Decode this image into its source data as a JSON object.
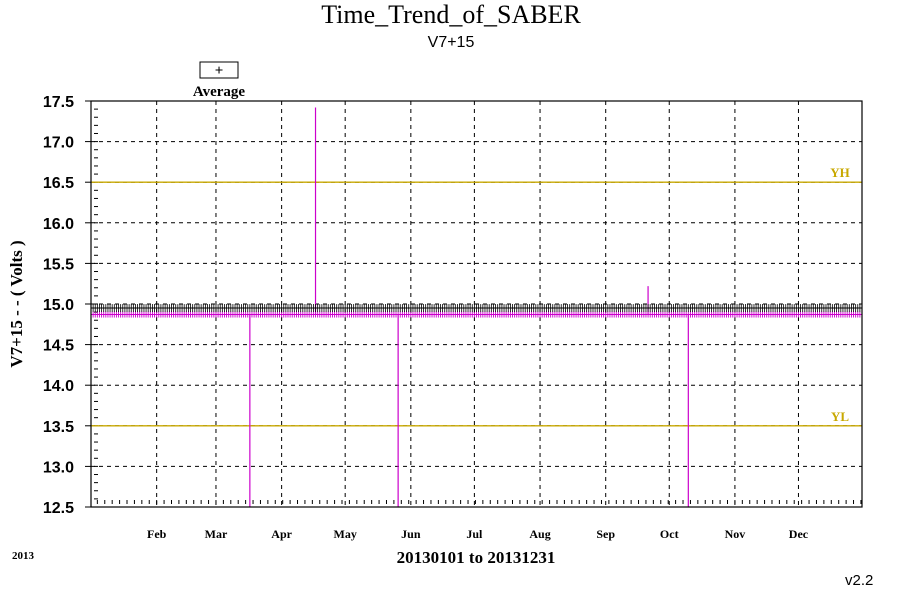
{
  "chart_data": {
    "type": "line",
    "title": "Time_Trend_of_SABER",
    "subtitle": "V7+15",
    "xlabel": "20130101 to 20131231",
    "ylabel": "V7+15  - - ( Volts )",
    "year_label": "2013",
    "version": "v2.2",
    "legend": {
      "symbol": "+",
      "label": "Average",
      "placement": "top-left"
    },
    "ylim": [
      12.5,
      17.5
    ],
    "yticks": [
      "12.5",
      "13.0",
      "13.5",
      "14.0",
      "14.5",
      "15.0",
      "15.5",
      "16.0",
      "16.5",
      "17.0",
      "17.5"
    ],
    "xlim_day": [
      1,
      365
    ],
    "months": [
      {
        "label": "Feb",
        "day": 32
      },
      {
        "label": "Mar",
        "day": 60
      },
      {
        "label": "Apr",
        "day": 91
      },
      {
        "label": "May",
        "day": 121
      },
      {
        "label": "Jun",
        "day": 152
      },
      {
        "label": "Jul",
        "day": 182
      },
      {
        "label": "Aug",
        "day": 213
      },
      {
        "label": "Sep",
        "day": 244
      },
      {
        "label": "Oct",
        "day": 274
      },
      {
        "label": "Nov",
        "day": 305
      },
      {
        "label": "Dec",
        "day": 335
      }
    ],
    "limits": [
      {
        "label": "YH",
        "value": 16.5,
        "color": "#c8a800"
      },
      {
        "label": "YL",
        "value": 13.5,
        "color": "#c8a800"
      }
    ],
    "series": [
      {
        "color": "#cc00cc",
        "baseline": 14.87,
        "spikes": [
          {
            "day": 76,
            "value": 12.5
          },
          {
            "day": 107,
            "value": 17.42
          },
          {
            "day": 146,
            "value": 12.5
          },
          {
            "day": 264,
            "value": 15.22
          },
          {
            "day": 283,
            "value": 12.5
          }
        ]
      }
    ],
    "average_marker_value": 14.95,
    "grid": true
  }
}
